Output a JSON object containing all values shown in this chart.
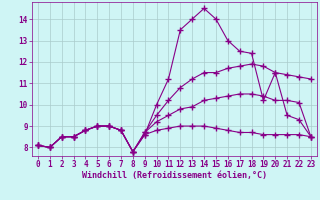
{
  "xlabel": "Windchill (Refroidissement éolien,°C)",
  "bg_color": "#cff5f5",
  "line_color": "#880088",
  "grid_color": "#aacccc",
  "xlim": [
    -0.5,
    23.5
  ],
  "ylim": [
    7.6,
    14.8
  ],
  "xticks": [
    0,
    1,
    2,
    3,
    4,
    5,
    6,
    7,
    8,
    9,
    10,
    11,
    12,
    13,
    14,
    15,
    16,
    17,
    18,
    19,
    20,
    21,
    22,
    23
  ],
  "yticks": [
    8,
    9,
    10,
    11,
    12,
    13,
    14
  ],
  "series": {
    "s1": [
      8.1,
      8.0,
      8.5,
      8.5,
      8.8,
      9.0,
      9.0,
      8.8,
      7.8,
      8.6,
      10.0,
      11.2,
      13.5,
      14.0,
      14.5,
      14.0,
      13.0,
      12.5,
      12.4,
      10.2,
      11.5,
      9.5,
      9.3,
      8.5
    ],
    "s2": [
      8.1,
      8.0,
      8.5,
      8.5,
      8.8,
      9.0,
      9.0,
      8.8,
      7.8,
      8.7,
      9.5,
      10.2,
      10.8,
      11.2,
      11.5,
      11.5,
      11.7,
      11.8,
      11.9,
      11.8,
      11.5,
      11.4,
      11.3,
      11.2
    ],
    "s3": [
      8.1,
      8.0,
      8.5,
      8.5,
      8.8,
      9.0,
      9.0,
      8.8,
      7.8,
      8.7,
      9.2,
      9.5,
      9.8,
      9.9,
      10.2,
      10.3,
      10.4,
      10.5,
      10.5,
      10.4,
      10.2,
      10.2,
      10.1,
      8.5
    ],
    "s4": [
      8.1,
      8.0,
      8.5,
      8.5,
      8.8,
      9.0,
      9.0,
      8.8,
      7.8,
      8.6,
      8.8,
      8.9,
      9.0,
      9.0,
      9.0,
      8.9,
      8.8,
      8.7,
      8.7,
      8.6,
      8.6,
      8.6,
      8.6,
      8.5
    ]
  },
  "marker": "+",
  "markersize": 4,
  "markeredgewidth": 1.0,
  "linewidth": 0.8,
  "tick_fontsize": 5.5,
  "label_fontsize": 6.0
}
